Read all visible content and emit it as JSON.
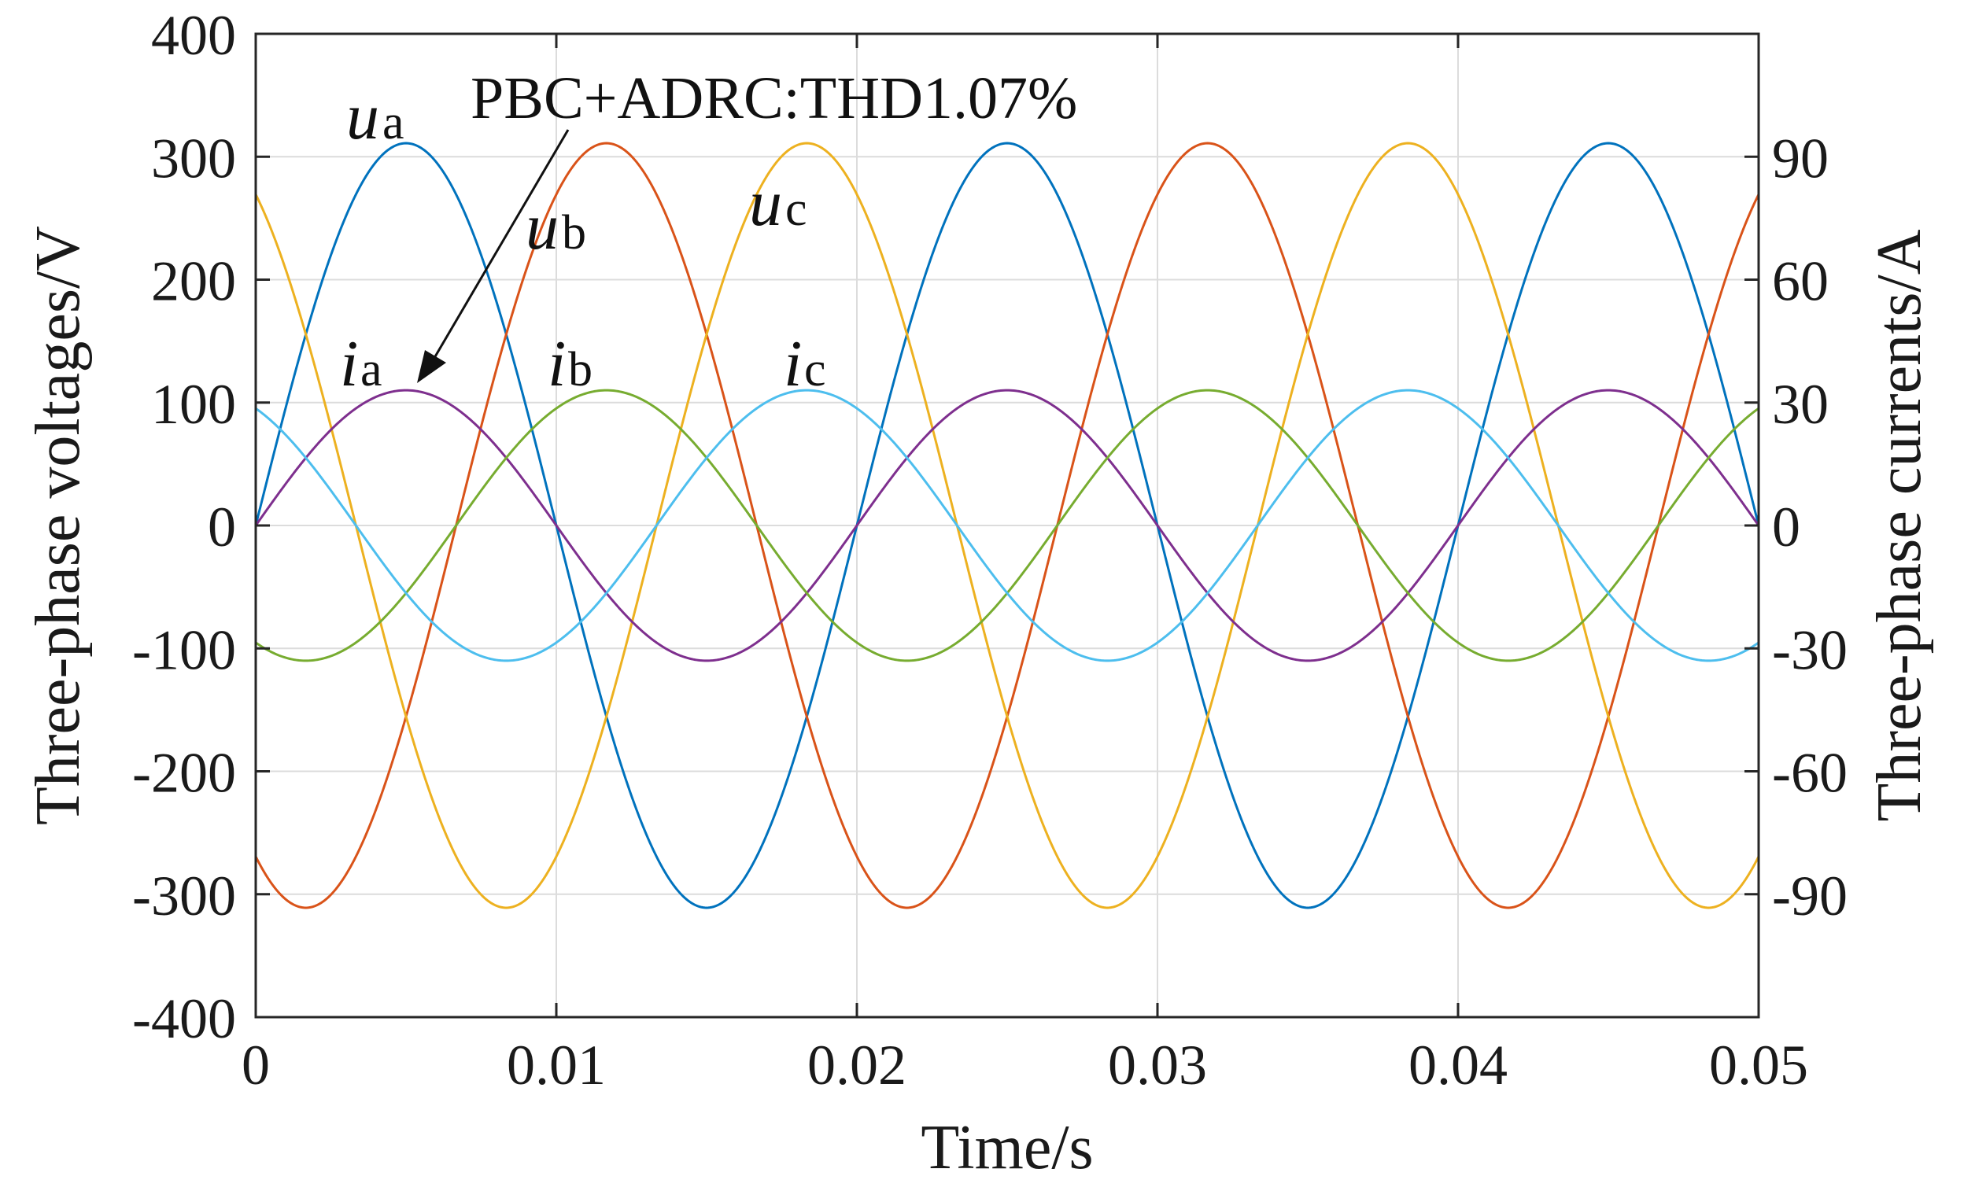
{
  "chart_data": {
    "type": "line",
    "xlabel": "Time/s",
    "ylabel_left": "Three-phase voltages/V",
    "ylabel_right": "Three-phase currents/A",
    "xlim": [
      0,
      0.05
    ],
    "ylim_left": [
      -400,
      400
    ],
    "ylim_right": [
      -120,
      120
    ],
    "x_ticks": [
      "0",
      "0.01",
      "0.02",
      "0.03",
      "0.04",
      "0.05"
    ],
    "y_ticks_left": [
      "400",
      "300",
      "200",
      "100",
      "0",
      "-100",
      "-200",
      "-300",
      "-400"
    ],
    "y_ticks_right": [
      "90",
      "60",
      "30",
      "0",
      "-30",
      "-60",
      "-90"
    ],
    "grid": true,
    "annotation": "PBC+ADRC:THD1.07%",
    "frequency_hz": 50,
    "series": [
      {
        "name": "ua",
        "axis": "left",
        "amplitude": 311,
        "phase_deg": 0,
        "color": "#0072BD"
      },
      {
        "name": "ub",
        "axis": "left",
        "amplitude": 311,
        "phase_deg": -120,
        "color": "#D95319"
      },
      {
        "name": "uc",
        "axis": "left",
        "amplitude": 311,
        "phase_deg": 120,
        "color": "#EDB120"
      },
      {
        "name": "ia",
        "axis": "right",
        "amplitude": 33,
        "phase_deg": 0,
        "color": "#7E2F8E"
      },
      {
        "name": "ib",
        "axis": "right",
        "amplitude": 33,
        "phase_deg": -120,
        "color": "#77AC30"
      },
      {
        "name": "ic",
        "axis": "right",
        "amplitude": 33,
        "phase_deg": 120,
        "color": "#4DBEEE"
      }
    ],
    "labels": [
      {
        "main": "u",
        "sub": "a"
      },
      {
        "main": "u",
        "sub": "b"
      },
      {
        "main": "u",
        "sub": "c"
      },
      {
        "main": "i",
        "sub": "a"
      },
      {
        "main": "i",
        "sub": "b"
      },
      {
        "main": "i",
        "sub": "c"
      }
    ]
  }
}
